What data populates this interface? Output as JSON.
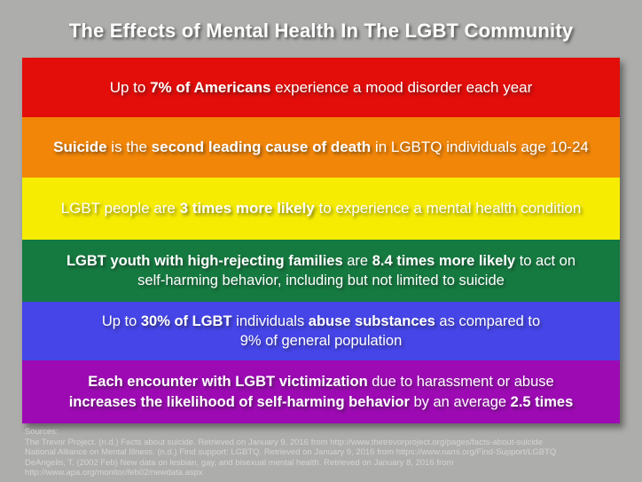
{
  "page": {
    "background_color": "#adadab",
    "sources_text_color": "#d4d4d2"
  },
  "title": {
    "text": "The Effects of Mental Health In The LGBT Community",
    "color": "#ffffff"
  },
  "stripes": [
    {
      "name": "mood-disorder",
      "color": "#e30d0a",
      "lines": [
        [
          {
            "t": "Up to ",
            "b": false
          },
          {
            "t": "7% of Americans",
            "b": true
          },
          {
            "t": " experience a mood disorder each year",
            "b": false
          }
        ]
      ]
    },
    {
      "name": "suicide-leading-cause",
      "color": "#f28608",
      "lines": [
        [
          {
            "t": "Suicide",
            "b": true
          },
          {
            "t": " is the ",
            "b": false
          },
          {
            "t": "second leading cause of death",
            "b": true
          },
          {
            "t": " in LGBTQ individuals age 10-24",
            "b": false
          }
        ]
      ]
    },
    {
      "name": "mental-health-condition",
      "color": "#f6ec02",
      "lines": [
        [
          {
            "t": "LGBT people are ",
            "b": false
          },
          {
            "t": "3 times more likely",
            "b": true
          },
          {
            "t": " to experience a mental health condition",
            "b": false
          }
        ]
      ]
    },
    {
      "name": "high-rejecting-families-self-harm",
      "color": "#157a40",
      "lines": [
        [
          {
            "t": "LGBT youth with high-rejecting families",
            "b": true
          },
          {
            "t": " are ",
            "b": false
          },
          {
            "t": "8.4 times more likely",
            "b": true
          },
          {
            "t": " to act on",
            "b": false
          }
        ],
        [
          {
            "t": "self-harming behavior, including but not limited to suicide",
            "b": false
          }
        ]
      ]
    },
    {
      "name": "substance-abuse",
      "color": "#4545e8",
      "lines": [
        [
          {
            "t": "Up to ",
            "b": false
          },
          {
            "t": "30% of LGBT",
            "b": true
          },
          {
            "t": " individuals ",
            "b": false
          },
          {
            "t": "abuse substances",
            "b": true
          },
          {
            "t": " as compared to",
            "b": false
          }
        ],
        [
          {
            "t": "9% of general population",
            "b": false
          }
        ]
      ]
    },
    {
      "name": "victimization-self-harm",
      "color": "#9d0ab4",
      "lines": [
        [
          {
            "t": "Each encounter with LGBT victimization",
            "b": true
          },
          {
            "t": " due to harassment or abuse",
            "b": false
          }
        ],
        [
          {
            "t": "increases the likelihood of self-harming behavior",
            "b": true
          },
          {
            "t": " by an average ",
            "b": false
          },
          {
            "t": "2.5 times",
            "b": true
          }
        ]
      ]
    }
  ],
  "sources": {
    "label": "Sources:",
    "items": [
      "The Trevor Project. (n.d.) Facts about suicide.  Retrieved on January 9, 2016 from http://www.thetrevorproject.org/pages/facts-about-suicide",
      "National Alliance on Mental Illness. (n.d.) Find support: LGBTQ. Retrieved on January 9, 2016 from https://www.nami.org/Find-Support/LGBTQ",
      "DeAngelis, T. (2002 Feb) New data on lesbian, gay, and bisexual mental health. Retrieved on January 8, 2016 from http://www.apa.org/monitor/feb02/newdata.aspx"
    ]
  }
}
